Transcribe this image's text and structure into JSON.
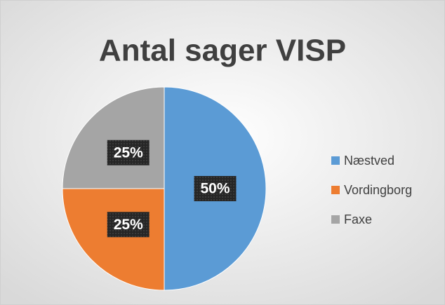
{
  "chart_data": {
    "type": "pie",
    "title": "Antal sager VISP",
    "categories": [
      "Næstved",
      "Vordingborg",
      "Faxe"
    ],
    "values": [
      50,
      25,
      25
    ],
    "value_labels": [
      "50%",
      "25%",
      "25%"
    ],
    "colors": [
      "#5b9bd5",
      "#ed7d31",
      "#a5a5a5"
    ],
    "legend": "right"
  }
}
